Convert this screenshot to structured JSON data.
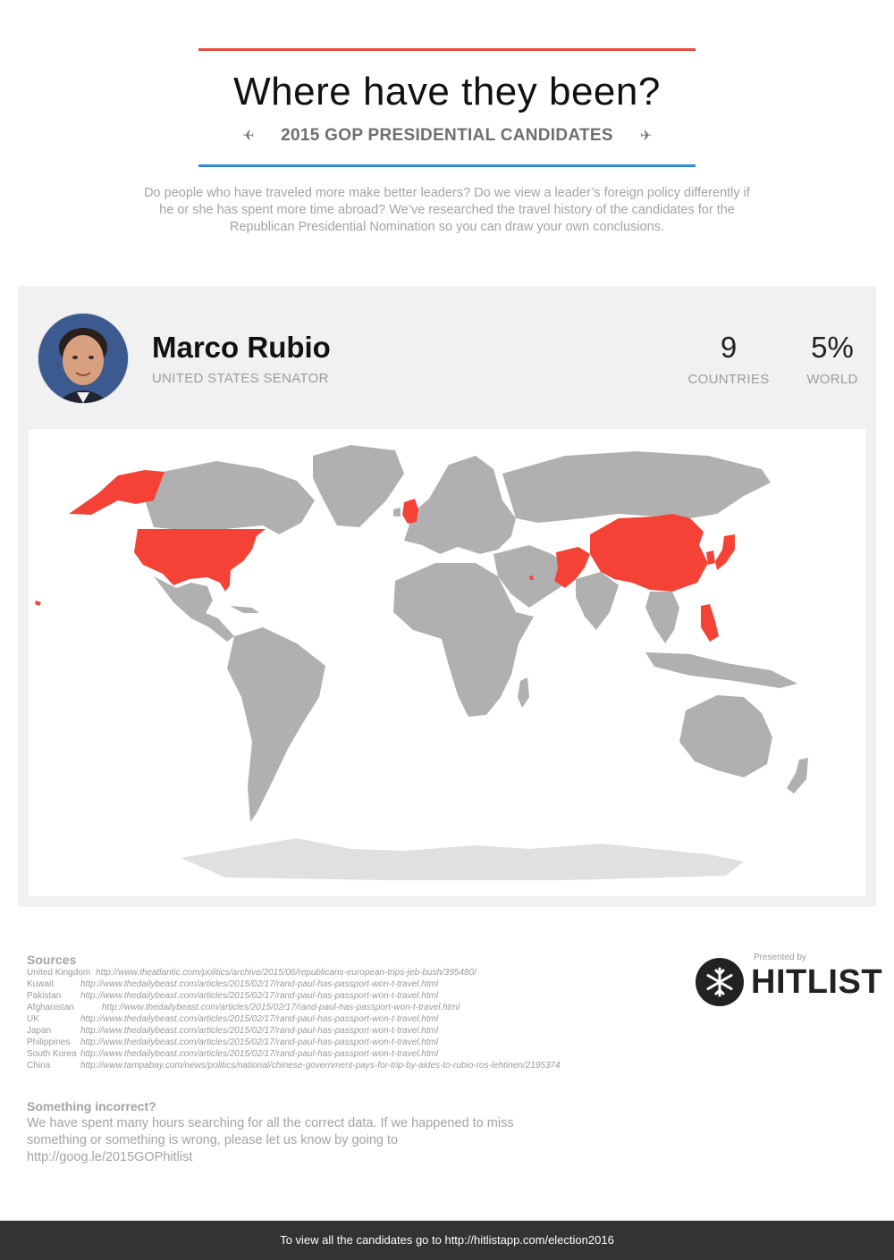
{
  "header": {
    "title": "Where have they been?",
    "subtitle": "2015 GOP PRESIDENTIAL CANDIDATES",
    "plane_left": "✈",
    "plane_right": "✈",
    "intro": "Do people who have traveled more make better leaders? Do we view a leader’s foreign policy differently if he or she has spent more time abroad? We’ve researched the travel history of the candidates for the Republican Presidential Nomination so you can draw your own conclusions."
  },
  "colors": {
    "top_rule": "#e8493d",
    "bottom_rule": "#2f8ad8",
    "visited": "#f44336",
    "not_visited": "#b0b0b0",
    "antarctica": "#e0e0e0"
  },
  "candidate": {
    "name": "Marco Rubio",
    "role": "UNITED STATES SENATOR",
    "countries_value": "9",
    "countries_label": "COUNTRIES",
    "world_value": "5%",
    "world_label": "WORLD"
  },
  "map": {
    "visited_countries": [
      "United States",
      "United Kingdom",
      "Kuwait",
      "Pakistan",
      "Afghanistan",
      "Japan",
      "Philippines",
      "South Korea",
      "China"
    ]
  },
  "sources": {
    "title": "Sources",
    "items": [
      {
        "country": "United Kingdom",
        "url": "http://www.theatlantic.com/politics/archive/2015/06/republicans-european-trips-jeb-bush/395480/"
      },
      {
        "country": "Kuwait",
        "url": "http://www.thedailybeast.com/articles/2015/02/17/rand-paul-has-passport-won-t-travel.html"
      },
      {
        "country": "Pakistan",
        "url": "http://www.thedailybeast.com/articles/2015/02/17/rand-paul-has-passport-won-t-travel.html"
      },
      {
        "country": "Afghanistan",
        "url": "http://www.thedailybeast.com/articles/2015/02/17/rand-paul-has-passport-won-t-travel.html"
      },
      {
        "country": "UK",
        "url": "http://www.thedailybeast.com/articles/2015/02/17/rand-paul-has-passport-won-t-travel.html"
      },
      {
        "country": "Japan",
        "url": "http://www.thedailybeast.com/articles/2015/02/17/rand-paul-has-passport-won-t-travel.html"
      },
      {
        "country": "Philippines",
        "url": "http://www.thedailybeast.com/articles/2015/02/17/rand-paul-has-passport-won-t-travel.html"
      },
      {
        "country": "South Korea",
        "url": "http://www.thedailybeast.com/articles/2015/02/17/rand-paul-has-passport-won-t-travel.html"
      },
      {
        "country": "China",
        "url": "http://www.tampabay.com/news/politics/national/chinese-government-pays-for-trip-by-aides-to-rubio-ros-lehtinen/2195374"
      }
    ]
  },
  "presenter": {
    "presented_by": "Presented by",
    "brand": "HITLIST"
  },
  "incorrect": {
    "title": "Something incorrect?",
    "body": "We have spent many hours searching for all the correct data. If we happened to miss something or something is wrong, please let us know by going to http://goog.le/2015GOPhitlist"
  },
  "footer": {
    "text": "To view all the candidates go to http://hitlistapp.com/election2016"
  }
}
